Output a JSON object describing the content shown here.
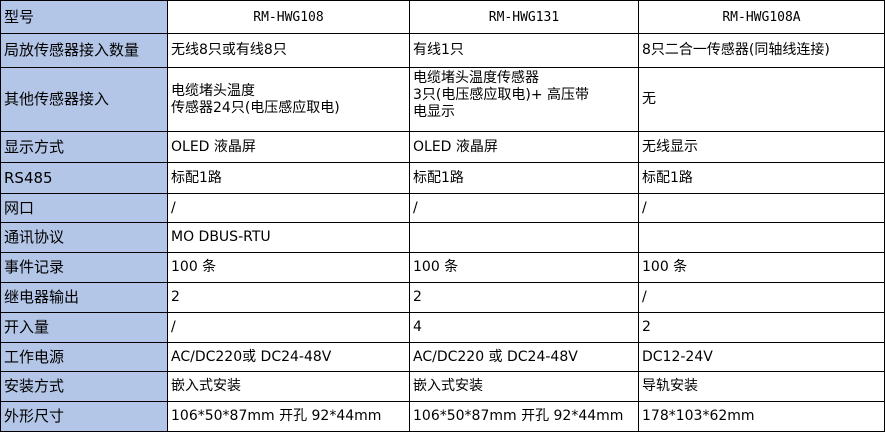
{
  "columns": [
    "型号",
    "RM-HWG108",
    "RM-HWG131",
    "RM-HWG108A"
  ],
  "rows": [
    {
      "label": "局放传感器接入数量",
      "values": [
        "无线8只或有线8只",
        "有线1只",
        "8只二合一传感器(同轴线连接)"
      ]
    },
    {
      "label": "其他传感器接入",
      "values": [
        "电缆堵头温度\n传感器24只(电压感应取电)",
        "电缆堵头温度传感器\n3只(电压感应取电)+ 高压带\n电显示",
        "无"
      ]
    },
    {
      "label": "显示方式",
      "values": [
        "OLED 液晶屏",
        "OLED 液晶屏",
        "无线显示"
      ]
    },
    {
      "label": "RS485",
      "values": [
        "标配1路",
        "标配1路",
        "标配1路"
      ]
    },
    {
      "label": "网口",
      "values": [
        "/",
        "/",
        "/"
      ]
    },
    {
      "label": "通讯协议",
      "values": [
        "MO DBUS-RTU",
        "",
        ""
      ]
    },
    {
      "label": "事件记录",
      "values": [
        "100 条",
        "100 条",
        "100 条"
      ]
    },
    {
      "label": "继电器输出",
      "values": [
        "2",
        "2",
        "/"
      ]
    },
    {
      "label": "开入量",
      "values": [
        "/",
        "4",
        "2"
      ]
    },
    {
      "label": "工作电源",
      "values": [
        "AC/DC220或 DC24-48V",
        "AC/DC220 或 DC24-48V",
        "DC12-24V"
      ]
    },
    {
      "label": "安装方式",
      "values": [
        "嵌入式安装",
        "嵌入式安装",
        "导轨安装"
      ]
    },
    {
      "label": "外形尺寸",
      "values": [
        "106*50*87mm 开孔 92*44mm",
        "106*50*87mm 开孔 92*44mm",
        "178*103*62mm"
      ]
    }
  ],
  "colors": {
    "header_bg": "#b4c6e7",
    "border": "#000000"
  }
}
